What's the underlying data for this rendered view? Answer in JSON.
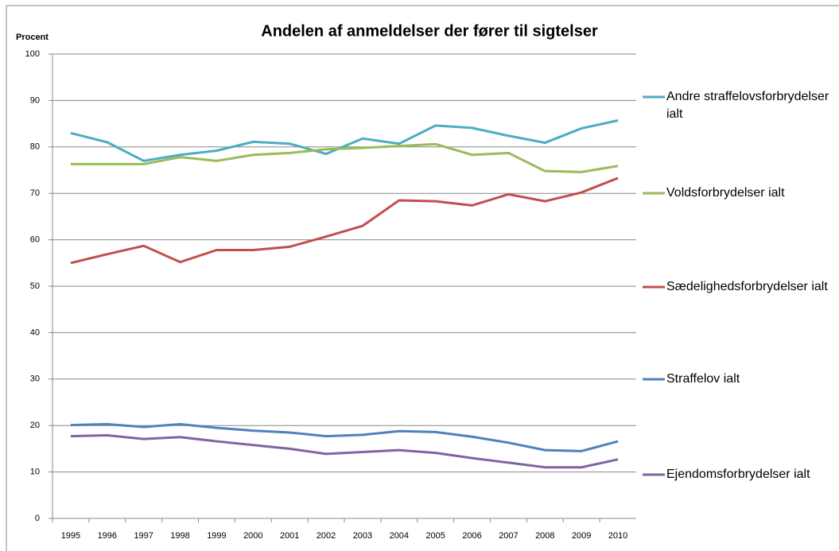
{
  "chart_data": {
    "type": "line",
    "title": "Andelen af anmeldelser der fører til sigtelser",
    "y_label": "Procent",
    "categories": [
      "1995",
      "1996",
      "1997",
      "1998",
      "1999",
      "2000",
      "2001",
      "2002",
      "2003",
      "2004",
      "2005",
      "2006",
      "2007",
      "2008",
      "2009",
      "2010"
    ],
    "series": [
      {
        "name": "Andre straffelovsforbrydelser ialt",
        "color": "#4bacc6",
        "values": [
          83,
          81,
          77,
          78.3,
          79.2,
          81.1,
          80.7,
          78.5,
          81.8,
          80.7,
          84.6,
          84.1,
          82.4,
          80.9,
          84,
          85.7
        ]
      },
      {
        "name": "Voldsforbrydelser ialt",
        "color": "#9bbb59",
        "values": [
          76.3,
          76.3,
          76.3,
          77.8,
          77,
          78.3,
          78.7,
          79.5,
          79.8,
          80.2,
          80.6,
          78.3,
          78.7,
          74.8,
          74.6,
          75.9
        ]
      },
      {
        "name": "Sædelighedsforbrydelser ialt",
        "color": "#c0504d",
        "values": [
          55,
          56.9,
          58.7,
          55.2,
          57.8,
          57.8,
          58.5,
          60.7,
          63,
          68.5,
          68.3,
          67.4,
          69.8,
          68.3,
          70.2,
          73.3
        ]
      },
      {
        "name": "Straffelov ialt",
        "color": "#4f81bd",
        "values": [
          20.1,
          20.3,
          19.7,
          20.3,
          19.5,
          18.9,
          18.5,
          17.7,
          18,
          18.8,
          18.6,
          17.6,
          16.3,
          14.7,
          14.5,
          16.6
        ]
      },
      {
        "name": "Ejendomsforbrydelser ialt",
        "color": "#8064a2",
        "values": [
          17.7,
          17.9,
          17.1,
          17.5,
          16.6,
          15.8,
          15,
          13.9,
          14.3,
          14.7,
          14.1,
          13,
          12,
          11,
          11,
          12.7
        ]
      }
    ],
    "ylim": [
      0,
      100
    ],
    "yticks": [
      0,
      10,
      20,
      30,
      40,
      50,
      60,
      70,
      80,
      90,
      100
    ],
    "grid": true
  }
}
